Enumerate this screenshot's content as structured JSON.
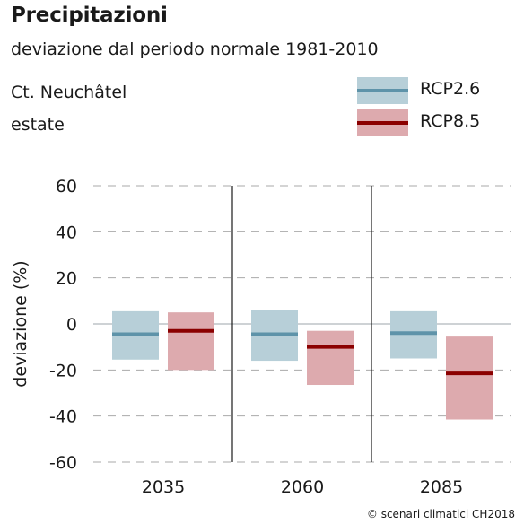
{
  "header": {
    "title": "Precipitazioni",
    "subtitle": "deviazione dal periodo normale 1981-2010",
    "region": "Ct. Neuchâtel",
    "season": "estate"
  },
  "credit": "© scenari climatici CH2018",
  "colors": {
    "rcp26_box": "#b7cfd8",
    "rcp26_line": "#5e93a9",
    "rcp85_box": "#ddaaae",
    "rcp85_line": "#8b0000",
    "grid": "#aaaaaa",
    "zero": "#b0b8bc",
    "divider": "#1a1a1a"
  },
  "chart_data": {
    "type": "bar",
    "title": "Precipitazioni",
    "subtitle": "deviazione dal periodo normale 1981-2010",
    "ylabel": "deviazione (%)",
    "xlabel": "",
    "ylim": [
      -60,
      60
    ],
    "yticks": [
      60,
      40,
      20,
      0,
      -20,
      -40,
      -60
    ],
    "grid": true,
    "legend_position": "top-right",
    "categories": [
      "2035",
      "2060",
      "2085"
    ],
    "series": [
      {
        "name": "RCP2.6",
        "median": [
          -4.5,
          -4.5,
          -4.0
        ],
        "low": [
          -15.5,
          -16.0,
          -15.0
        ],
        "high": [
          5.5,
          6.0,
          5.5
        ]
      },
      {
        "name": "RCP8.5",
        "median": [
          -3.0,
          -10.0,
          -21.5
        ],
        "low": [
          -20.0,
          -26.5,
          -41.5
        ],
        "high": [
          5.0,
          -3.0,
          -5.5
        ]
      }
    ]
  }
}
